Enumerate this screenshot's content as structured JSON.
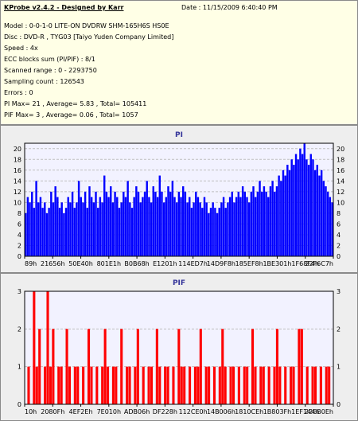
{
  "info": {
    "title": "KProbe v2.4.2 - Designed by Karr",
    "date": "Date : 11/15/2009 6:40:40 PM",
    "lines": [
      "Model : 0-0-1-0 LITE-ON DVDRW SHM-165H6S HS0E",
      "Disc : DVD-R , TYG03 [Taiyo Yuden Company Limited]",
      "Speed : 4x",
      "ECC blocks sum (PI/PIF) : 8/1",
      "Scanned range : 0 - 2293750",
      "Sampling count : 126543",
      "Errors : 0",
      "PI Max= 21 , Average= 5.83 , Total= 105411",
      "PIF Max= 3 , Average= 0.06 , Total= 1057"
    ]
  },
  "colors": {
    "pi_bars": "#0000ff",
    "pif_bars": "#ff0000",
    "plot_bg": "#f2f2ff",
    "grid": "#c0c0c0",
    "axis": "#000000",
    "title": "#333399"
  },
  "chart_data": [
    {
      "type": "bar",
      "title": "PI",
      "xlabel": "",
      "ylabel": "",
      "ylim": [
        0,
        21
      ],
      "yticks": [
        0,
        2,
        4,
        6,
        8,
        10,
        12,
        14,
        16,
        18,
        20
      ],
      "grid": true,
      "x_tick_labels": [
        "89h",
        "21656h",
        "50E40h",
        "801E1h",
        "B0B68h",
        "E1201h",
        "114ED7h",
        "14D9F8h",
        "185EF8h",
        "1BE301h",
        "1F68F4h",
        "22F6C7h"
      ],
      "series": [
        {
          "values": [
            8,
            11,
            10,
            12,
            9,
            14,
            10,
            11,
            9,
            10,
            8,
            9,
            12,
            10,
            13,
            11,
            9,
            10,
            8,
            9,
            11,
            10,
            12,
            9,
            10,
            14,
            11,
            10,
            12,
            9,
            13,
            11,
            10,
            12,
            9,
            11,
            10,
            15,
            12,
            11,
            13,
            10,
            12,
            11,
            9,
            10,
            12,
            11,
            14,
            10,
            9,
            11,
            13,
            12,
            10,
            11,
            12,
            14,
            11,
            10,
            13,
            12,
            11,
            15,
            12,
            10,
            11,
            13,
            12,
            14,
            11,
            10,
            12,
            11,
            13,
            12,
            10,
            11,
            9,
            10,
            12,
            11,
            10,
            9,
            11,
            10,
            8,
            9,
            10,
            9,
            8,
            9,
            10,
            11,
            9,
            10,
            11,
            12,
            10,
            11,
            12,
            11,
            13,
            12,
            11,
            10,
            12,
            13,
            11,
            12,
            14,
            12,
            13,
            12,
            11,
            13,
            14,
            12,
            13,
            15,
            14,
            16,
            15,
            17,
            16,
            18,
            17,
            19,
            18,
            20,
            19,
            21,
            18,
            17,
            19,
            18,
            16,
            17,
            15,
            16,
            14,
            13,
            12,
            11,
            10
          ]
        }
      ]
    },
    {
      "type": "bar",
      "title": "PIF",
      "xlabel": "",
      "ylabel": "",
      "ylim": [
        0,
        3
      ],
      "yticks": [
        0,
        1,
        2,
        3
      ],
      "grid": true,
      "x_tick_labels": [
        "10h",
        "2080Fh",
        "4EF2Eh",
        "7E010h",
        "ADB06h",
        "DF228h",
        "112CE0h",
        "14B006h",
        "1810CEh",
        "1B803Fh",
        "1EF144h",
        "226B0Eh"
      ],
      "series": [
        {
          "values": [
            0,
            1,
            0,
            3,
            1,
            2,
            0,
            1,
            3,
            1,
            2,
            0,
            1,
            1,
            0,
            2,
            1,
            0,
            1,
            1,
            0,
            1,
            0,
            2,
            1,
            0,
            1,
            0,
            1,
            2,
            1,
            0,
            1,
            1,
            0,
            2,
            0,
            1,
            1,
            0,
            1,
            2,
            0,
            1,
            0,
            1,
            1,
            0,
            2,
            1,
            0,
            1,
            1,
            0,
            1,
            0,
            2,
            1,
            1,
            0,
            1,
            0,
            1,
            1,
            2,
            0,
            1,
            1,
            0,
            1,
            0,
            1,
            2,
            1,
            0,
            1,
            1,
            0,
            1,
            0,
            1,
            1,
            0,
            2,
            1,
            0,
            1,
            1,
            0,
            1,
            0,
            1,
            2,
            1,
            0,
            1,
            0,
            1,
            1,
            0,
            2,
            2,
            0,
            1,
            0,
            1,
            1,
            0,
            1,
            0,
            1,
            1,
            0
          ]
        }
      ]
    }
  ]
}
